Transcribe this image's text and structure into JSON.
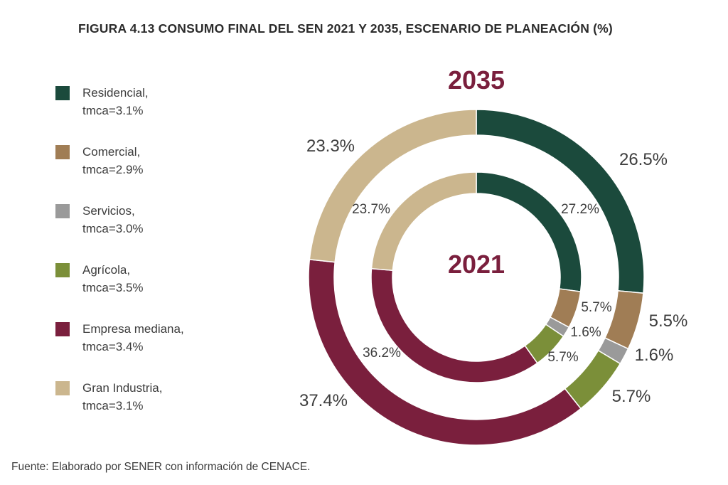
{
  "title": "FIGURA 4.13 CONSUMO FINAL DEL SEN 2021 Y 2035, ESCENARIO DE PLANEACIÓN (%)",
  "source": "Fuente: Elaborado por SENER con información de CENACE.",
  "legend": [
    {
      "name": "Residencial,",
      "tmca": "tmca=3.1%",
      "color": "#1b4a3c"
    },
    {
      "name": "Comercial,",
      "tmca": "tmca=2.9%",
      "color": "#a07d55"
    },
    {
      "name": "Servicios,",
      "tmca": "tmca=3.0%",
      "color": "#9a9a9a"
    },
    {
      "name": "Agrícola,",
      "tmca": "tmca=3.5%",
      "color": "#7b8f39"
    },
    {
      "name": "Empresa mediana,",
      "tmca": "tmca=3.4%",
      "color": "#7a1f3d"
    },
    {
      "name": "Gran Industria,",
      "tmca": "tmca=3.1%",
      "color": "#cbb68e"
    }
  ],
  "chart_data": {
    "type": "pie",
    "title": "FIGURA 4.13 CONSUMO FINAL DEL SEN 2021 Y 2035, ESCENARIO DE PLANEACIÓN (%)",
    "categories": [
      "Residencial",
      "Comercial",
      "Servicios",
      "Agrícola",
      "Empresa mediana",
      "Gran Industria"
    ],
    "series": [
      {
        "name": "2035",
        "values": [
          26.5,
          5.5,
          1.6,
          5.7,
          37.4,
          23.3
        ],
        "labels": [
          "26.5%",
          "5.5%",
          "1.6%",
          "5.7%",
          "37.4%",
          "23.3%"
        ]
      },
      {
        "name": "2021",
        "values": [
          27.2,
          5.7,
          1.6,
          5.7,
          36.2,
          23.7
        ],
        "labels": [
          "27.2%",
          "5.7%",
          "1.6%",
          "5.7%",
          "36.2%",
          "23.7%"
        ]
      }
    ],
    "legend_position": "left"
  }
}
